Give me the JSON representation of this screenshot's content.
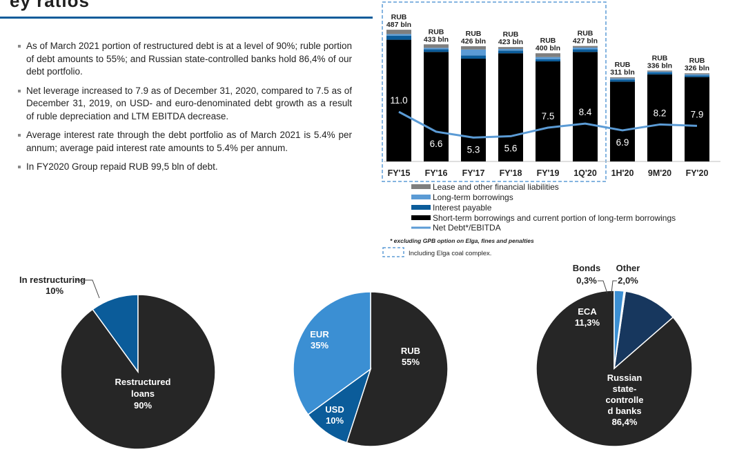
{
  "title_fragment": "ey ratios",
  "bullets": [
    "As of March 2021 portion of restructured debt is at a level of 90%; ruble portion of debt amounts to 55%; and Russian state-controlled banks hold 86,4% of our debt portfolio.",
    "Net leverage increased to 7.9 as of December 31, 2020, compared to 7.5 as of December 31, 2019, on USD- and euro-denominated debt growth as a result of ruble depreciation and LTM EBITDA decrease.",
    "Average interest rate through the debt portfolio as of March 2021 is 5.4% per annum; average paid interest rate amounts to 5.4% per annum.",
    "In FY2020 Group repaid RUB 99,5 bln of debt."
  ],
  "chart_data": [
    {
      "type": "bar",
      "stacked": true,
      "categories": [
        "FY'15",
        "FY'16",
        "FY'17",
        "FY'18",
        "FY'19",
        "1Q'20",
        "1H'20",
        "9M'20",
        "FY'20"
      ],
      "totals": [
        487,
        433,
        426,
        423,
        400,
        427,
        311,
        336,
        326
      ],
      "total_labels": [
        [
          "RUB",
          "487 bln"
        ],
        [
          "RUB",
          "433 bln"
        ],
        [
          "RUB",
          "426 bln"
        ],
        [
          "RUB",
          "423 bln"
        ],
        [
          "RUB",
          "400 bln"
        ],
        [
          "RUB",
          "427 bln"
        ],
        [
          "RUB",
          "311 bln"
        ],
        [
          "RUB",
          "336 bln"
        ],
        [
          "RUB",
          "326 bln"
        ]
      ],
      "series": [
        {
          "name": "Short-term borrowings and current portion of long-term borrowings",
          "color": "#000000",
          "values": [
            450,
            405,
            380,
            400,
            370,
            405,
            295,
            322,
            312
          ]
        },
        {
          "name": "Interest payable",
          "color": "#0b5c9a",
          "values": [
            15,
            10,
            12,
            10,
            8,
            10,
            8,
            7,
            6
          ]
        },
        {
          "name": "Long-term borrowings",
          "color": "#5b9bd5",
          "values": [
            6,
            5,
            22,
            6,
            8,
            6,
            4,
            3,
            4
          ]
        },
        {
          "name": "Lease and other financial liabilities",
          "color": "#7f7f7f",
          "values": [
            16,
            13,
            12,
            7,
            14,
            6,
            4,
            4,
            4
          ]
        }
      ],
      "line": {
        "name": "Net Debt*/EBITDA",
        "color": "#5b9bd5",
        "values": [
          11.0,
          6.6,
          5.3,
          5.6,
          7.5,
          8.4,
          6.9,
          8.2,
          7.9
        ],
        "labels": [
          "11.0",
          "6.6",
          "5.3",
          "5.6",
          "7.5",
          "8.4",
          "6.9",
          "8.2",
          "7.9"
        ],
        "ylim": [
          0,
          30
        ]
      },
      "ylim": [
        0,
        500
      ],
      "legend_order": [
        "Lease and other financial liabilities",
        "Long-term borrowings",
        "Interest payable",
        "Short-term borrowings and current portion of long-term borrowings",
        "Net Debt*/EBITDA"
      ],
      "footnote": "* excluding GPB option on Elga, fines and penalties",
      "box_note": "Including Elga coal complex."
    },
    {
      "type": "pie",
      "slices": [
        {
          "label": "In restructuring",
          "value": 10,
          "pct": "10%",
          "color": "#0b5c9a"
        },
        {
          "label": "Restructured loans",
          "value": 90,
          "pct": "90%",
          "color": "#262626"
        }
      ]
    },
    {
      "type": "pie",
      "slices": [
        {
          "label": "RUB",
          "value": 55,
          "pct": "55%",
          "color": "#262626"
        },
        {
          "label": "USD",
          "value": 10,
          "pct": "10%",
          "color": "#0b5c9a"
        },
        {
          "label": "EUR",
          "value": 35,
          "pct": "35%",
          "color": "#3b8fd3"
        }
      ]
    },
    {
      "type": "pie",
      "slices": [
        {
          "label": "Russian state-controlled banks",
          "value": 86.4,
          "pct": "86,4%",
          "color": "#262626"
        },
        {
          "label": "ECA",
          "value": 11.3,
          "pct": "11,3%",
          "color": "#17375e"
        },
        {
          "label": "Bonds",
          "value": 0.3,
          "pct": "0,3%",
          "color": "#dce6f1"
        },
        {
          "label": "Other",
          "value": 2.0,
          "pct": "2,0%",
          "color": "#3b8fd3"
        }
      ]
    }
  ],
  "pie_labels": {
    "p1_restr_title": "In restructuring",
    "p1_restr_pct": "10%",
    "p1_loans_1": "Restructured",
    "p1_loans_2": "loans",
    "p1_loans_pct": "90%",
    "p2_rub": "RUB",
    "p2_rub_pct": "55%",
    "p2_eur": "EUR",
    "p2_eur_pct": "35%",
    "p2_usd": "USD",
    "p2_usd_pct": "10%",
    "p3_bonds": "Bonds",
    "p3_bonds_pct": "0,3%",
    "p3_other": "Other",
    "p3_other_pct": "2,0%",
    "p3_eca": "ECA",
    "p3_eca_pct": "11,3%",
    "p3_banks": [
      "Russian",
      "state-",
      "controlle",
      "d banks",
      "86,4%"
    ]
  }
}
